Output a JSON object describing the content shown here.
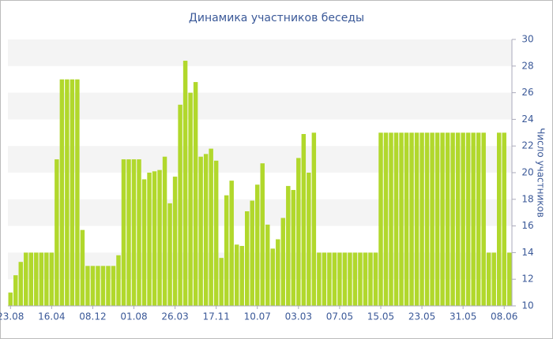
{
  "chart_data": {
    "type": "bar",
    "title": "Динамика участников беседы",
    "y_label": "Число участников",
    "categories": [
      "23.08",
      null,
      null,
      null,
      null,
      null,
      null,
      null,
      "16.04",
      null,
      null,
      null,
      null,
      null,
      null,
      null,
      "08.12",
      null,
      null,
      null,
      null,
      null,
      null,
      null,
      "01.08",
      null,
      null,
      null,
      null,
      null,
      null,
      null,
      "26.03",
      null,
      null,
      null,
      null,
      null,
      null,
      null,
      "17.11",
      null,
      null,
      null,
      null,
      null,
      null,
      null,
      "10.07",
      null,
      null,
      null,
      null,
      null,
      null,
      null,
      "03.03",
      null,
      null,
      null,
      null,
      null,
      null,
      null,
      "07.05",
      null,
      null,
      null,
      null,
      null,
      null,
      null,
      "15.05",
      null,
      null,
      null,
      null,
      null,
      null,
      null,
      "23.05",
      null,
      null,
      null,
      null,
      null,
      null,
      null,
      "31.05",
      null,
      null,
      null,
      null,
      null,
      null,
      null,
      "08.06",
      null
    ],
    "values": [
      11,
      12.3,
      13.3,
      14,
      14,
      14,
      14,
      14,
      14,
      21,
      27,
      27,
      27,
      27,
      15.7,
      13,
      13,
      13,
      13,
      13,
      13,
      13.8,
      21,
      21,
      21,
      21,
      19.5,
      20,
      20.1,
      20.2,
      21.2,
      17.7,
      19.7,
      25.1,
      28.4,
      26,
      26.8,
      21.2,
      21.4,
      21.8,
      20.9,
      13.6,
      18.3,
      19.4,
      14.6,
      14.5,
      17.1,
      17.9,
      19.1,
      20.7,
      16.1,
      14.3,
      15,
      16.6,
      19,
      18.7,
      21.1,
      22.9,
      20,
      23,
      14,
      14,
      14,
      14,
      14,
      14,
      14,
      14,
      14,
      14,
      14,
      14,
      23,
      23,
      23,
      23,
      23,
      23,
      23,
      23,
      23,
      23,
      23,
      23,
      23,
      23,
      23,
      23,
      23,
      23,
      23,
      23,
      23,
      14,
      14,
      23,
      23,
      14
    ],
    "color": "#b1d82c",
    "ylim": [
      10,
      30
    ],
    "yticks": [
      10,
      12,
      14,
      16,
      18,
      20,
      22,
      24,
      26,
      28,
      30
    ],
    "grid": true,
    "axis_side": "right"
  }
}
